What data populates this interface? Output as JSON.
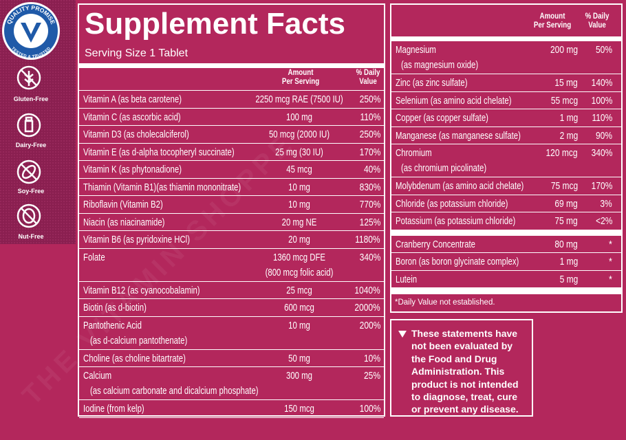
{
  "sidebar": {
    "badge": {
      "top": "QUALITY PROMISE",
      "bottom": "TESTED & TRUSTED"
    },
    "icons": [
      "Gluten-Free",
      "Dairy-Free",
      "Soy-Free",
      "Nut-Free"
    ]
  },
  "watermark": "THE VITAMIN SHOPPE",
  "facts": {
    "title": "Supplement Facts",
    "serving_size": "Serving Size 1 Tablet",
    "header": {
      "amount": [
        "Amount",
        "Per Serving"
      ],
      "dv": [
        "% Daily",
        "Value"
      ]
    },
    "rows": [
      {
        "name": "Vitamin A (as beta carotene)",
        "amount": "2250 mcg RAE (7500 IU)",
        "dv": "250%"
      },
      {
        "name": "Vitamin C (as ascorbic acid)",
        "amount": "100 mg",
        "dv": "110%"
      },
      {
        "name": "Vitamin D3 (as cholecalciferol)",
        "amount": "50 mcg (2000 IU)",
        "dv": "250%"
      },
      {
        "name": "Vitamin E (as d-alpha tocopheryl succinate)",
        "amount": "25 mg (30 IU)",
        "dv": "170%"
      },
      {
        "name": "Vitamin K (as phytonadione)",
        "amount": "45 mcg",
        "dv": "40%"
      },
      {
        "name": "Thiamin (Vitamin B1)(as thiamin mononitrate)",
        "amount": "10 mg",
        "dv": "830%"
      },
      {
        "name": "Riboflavin (Vitamin B2)",
        "amount": "10 mg",
        "dv": "770%"
      },
      {
        "name": "Niacin (as niacinamide)",
        "amount": "20 mg NE",
        "dv": "125%"
      },
      {
        "name": "Vitamin B6 (as pyridoxine HCl)",
        "amount": "20 mg",
        "dv": "1180%"
      },
      {
        "name": "Folate",
        "amount": "1360 mcg DFE",
        "amount_detail": "(800 mcg folic acid)",
        "dv": "340%"
      },
      {
        "name": "Vitamin B12 (as cyanocobalamin)",
        "amount": "25 mcg",
        "dv": "1040%"
      },
      {
        "name": "Biotin (as d-biotin)",
        "amount": "600 mcg",
        "dv": "2000%"
      },
      {
        "name": "Pantothenic Acid",
        "name_detail": "(as d-calcium pantothenate)",
        "amount": "10 mg",
        "dv": "200%"
      },
      {
        "name": "Choline (as choline bitartrate)",
        "amount": "50 mg",
        "dv": "10%"
      },
      {
        "name": "Calcium",
        "name_detail": "(as calcium carbonate and dicalcium phosphate)",
        "amount": "300 mg",
        "dv": "25%"
      },
      {
        "name": "Iodine (from kelp)",
        "amount": "150 mcg",
        "dv": "100%"
      }
    ]
  },
  "facts_continued": {
    "header": {
      "amount": [
        "Amount",
        "Per Serving"
      ],
      "dv": [
        "% Daily",
        "Value"
      ]
    },
    "sections": [
      [
        {
          "name": "Magnesium",
          "name_detail": "(as magnesium oxide)",
          "amount": "200 mg",
          "dv": "50%"
        },
        {
          "name": "Zinc (as zinc sulfate)",
          "amount": "15 mg",
          "dv": "140%"
        },
        {
          "name": "Selenium (as amino acid chelate)",
          "amount": "55 mcg",
          "dv": "100%"
        },
        {
          "name": "Copper (as copper sulfate)",
          "amount": "1 mg",
          "dv": "110%"
        },
        {
          "name": "Manganese (as manganese sulfate)",
          "amount": "2 mg",
          "dv": "90%"
        },
        {
          "name": "Chromium",
          "name_detail": "(as chromium picolinate)",
          "amount": "120 mcg",
          "dv": "340%"
        },
        {
          "name": "Molybdenum (as amino acid chelate)",
          "amount": "75 mcg",
          "dv": "170%"
        },
        {
          "name": "Chloride (as potassium chloride)",
          "amount": "69 mg",
          "dv": "3%"
        },
        {
          "name": "Potassium (as potassium chloride)",
          "amount": "75 mg",
          "dv": "<2%"
        }
      ],
      [
        {
          "name": "Cranberry Concentrate",
          "amount": "80 mg",
          "dv": "*"
        },
        {
          "name": "Boron (as boron glycinate complex)",
          "amount": "1 mg",
          "dv": "*"
        },
        {
          "name": "Lutein",
          "amount": "5 mg",
          "dv": "*"
        }
      ]
    ],
    "footnote": "*Daily Value not established."
  },
  "disclaimer": {
    "lines": [
      "These statements have",
      "not been evaluated by",
      "the Food and Drug",
      "Administration. This",
      "product is not intended",
      "to diagnose, treat, cure",
      "or prevent any disease."
    ]
  }
}
